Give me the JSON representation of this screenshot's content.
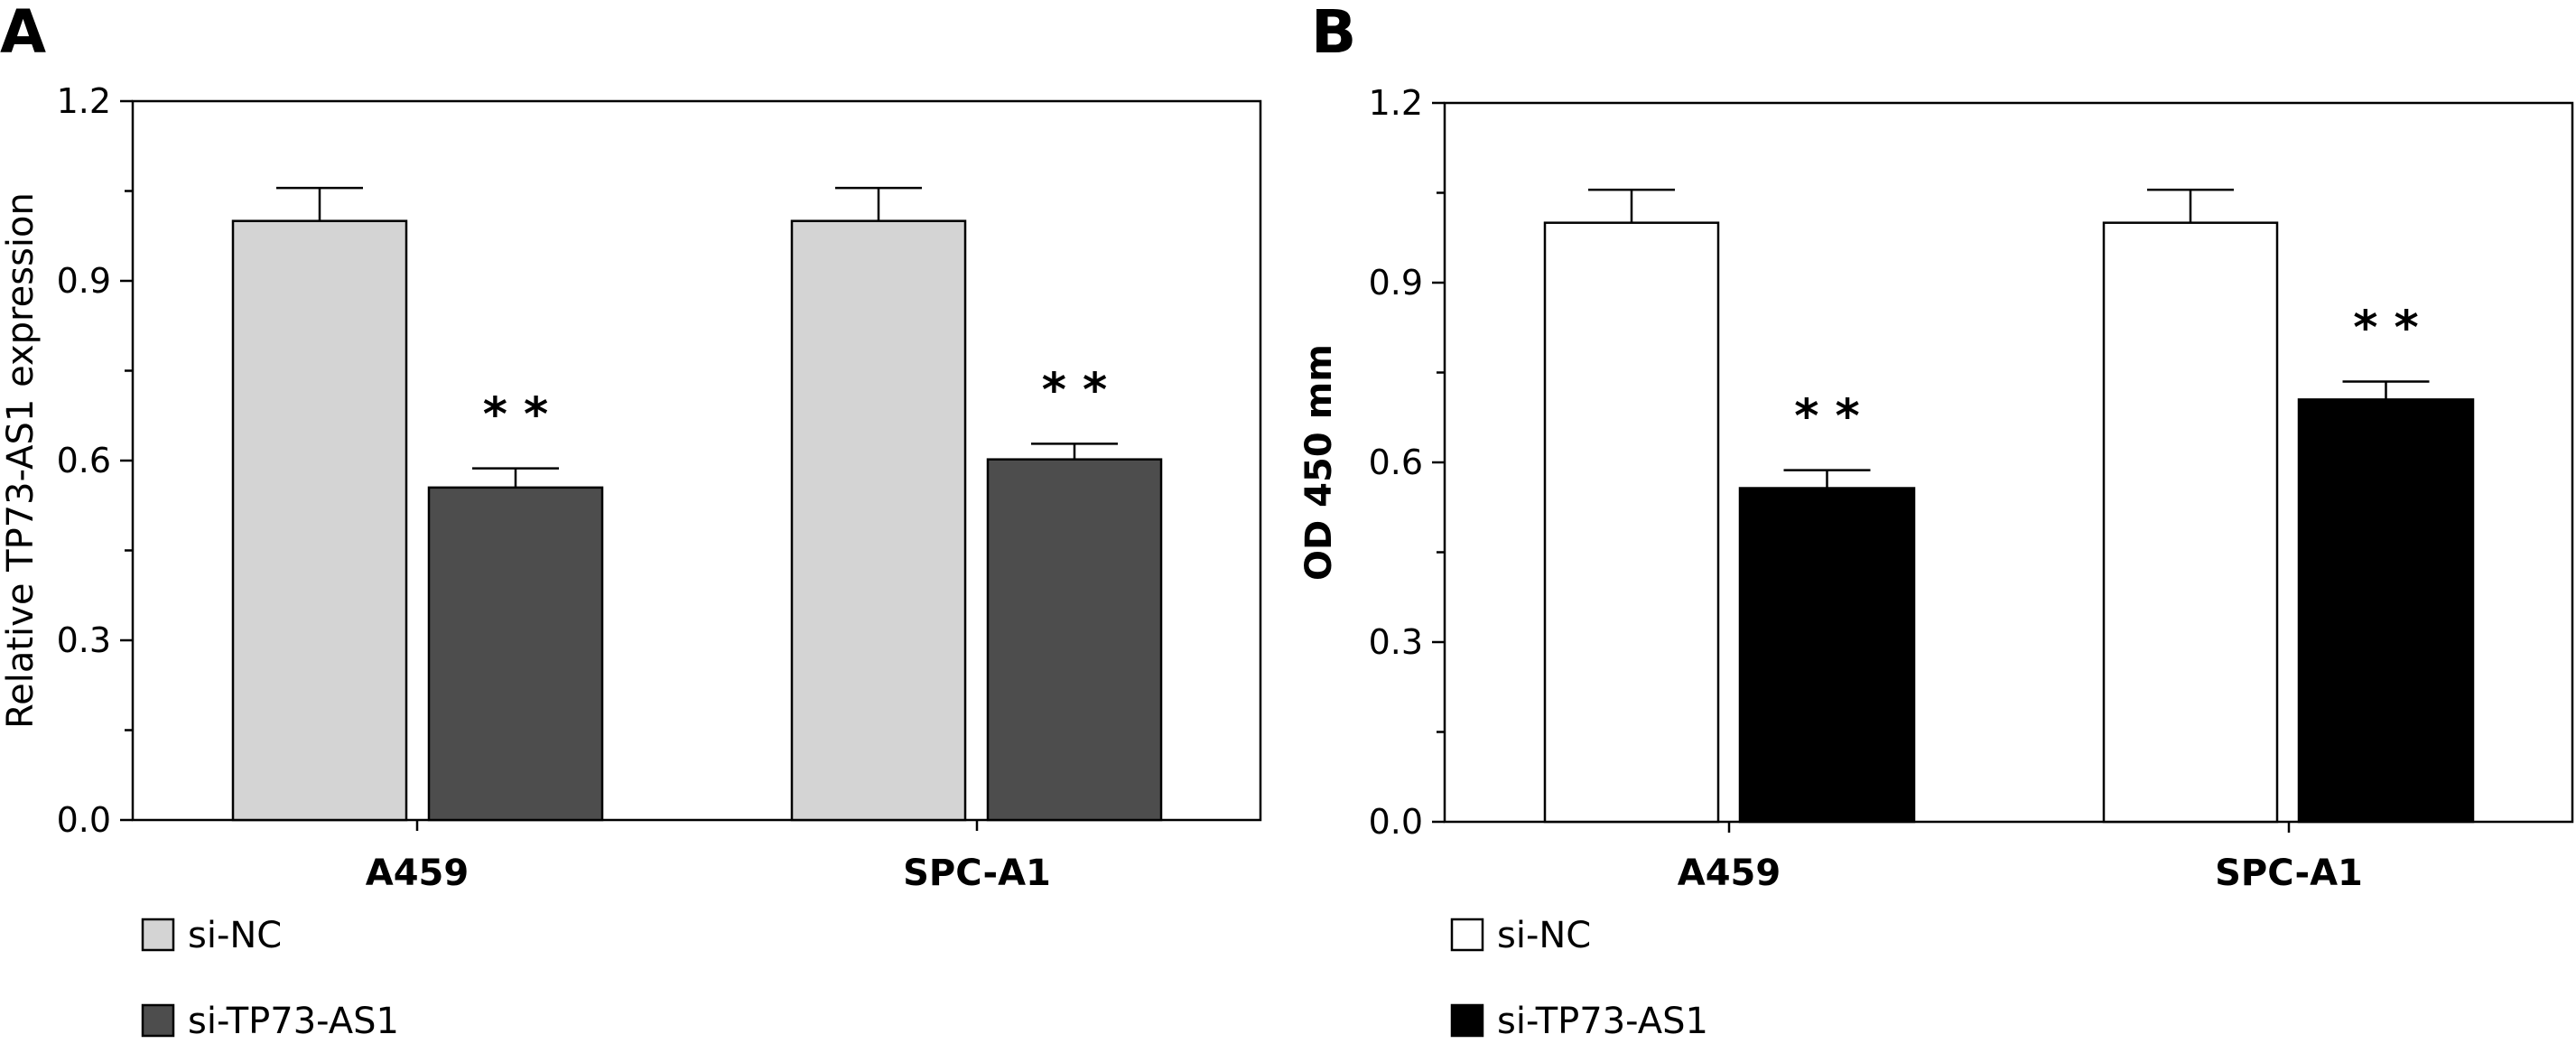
{
  "chart_data": [
    {
      "type": "bar",
      "panel": "A",
      "title": "",
      "xlabel": "",
      "ylabel": "Relative TP73-AS1 expression",
      "ylim": [
        0,
        1.2
      ],
      "yticks": [
        "0.0",
        "0.3",
        "0.6",
        "0.9",
        "1.2"
      ],
      "categories": [
        "A459",
        "SPC-A1"
      ],
      "series": [
        {
          "name": "si-NC",
          "values": [
            1.0,
            1.0
          ],
          "errors": [
            0.055,
            0.055
          ],
          "color": "#d4d4d4"
        },
        {
          "name": "si-TP73-AS1",
          "values": [
            0.555,
            0.602
          ],
          "errors": [
            0.032,
            0.026
          ],
          "color": "#4d4d4d"
        }
      ],
      "annotations": [
        "* *",
        "* *"
      ],
      "legend": "below",
      "grid": false
    },
    {
      "type": "bar",
      "panel": "B",
      "title": "",
      "xlabel": "",
      "ylabel": "OD 450 mm",
      "ylim": [
        0,
        1.2
      ],
      "yticks": [
        "0.0",
        "0.3",
        "0.6",
        "0.9",
        "1.2"
      ],
      "categories": [
        "A459",
        "SPC-A1"
      ],
      "series": [
        {
          "name": "si-NC",
          "values": [
            1.0,
            1.0
          ],
          "errors": [
            0.055,
            0.055
          ],
          "color": "#ffffff"
        },
        {
          "name": "si-TP73-AS1",
          "values": [
            0.557,
            0.705
          ],
          "errors": [
            0.03,
            0.03
          ],
          "color": "#000000"
        }
      ],
      "annotations": [
        "* *",
        "* *"
      ],
      "legend": "below",
      "grid": false
    }
  ]
}
